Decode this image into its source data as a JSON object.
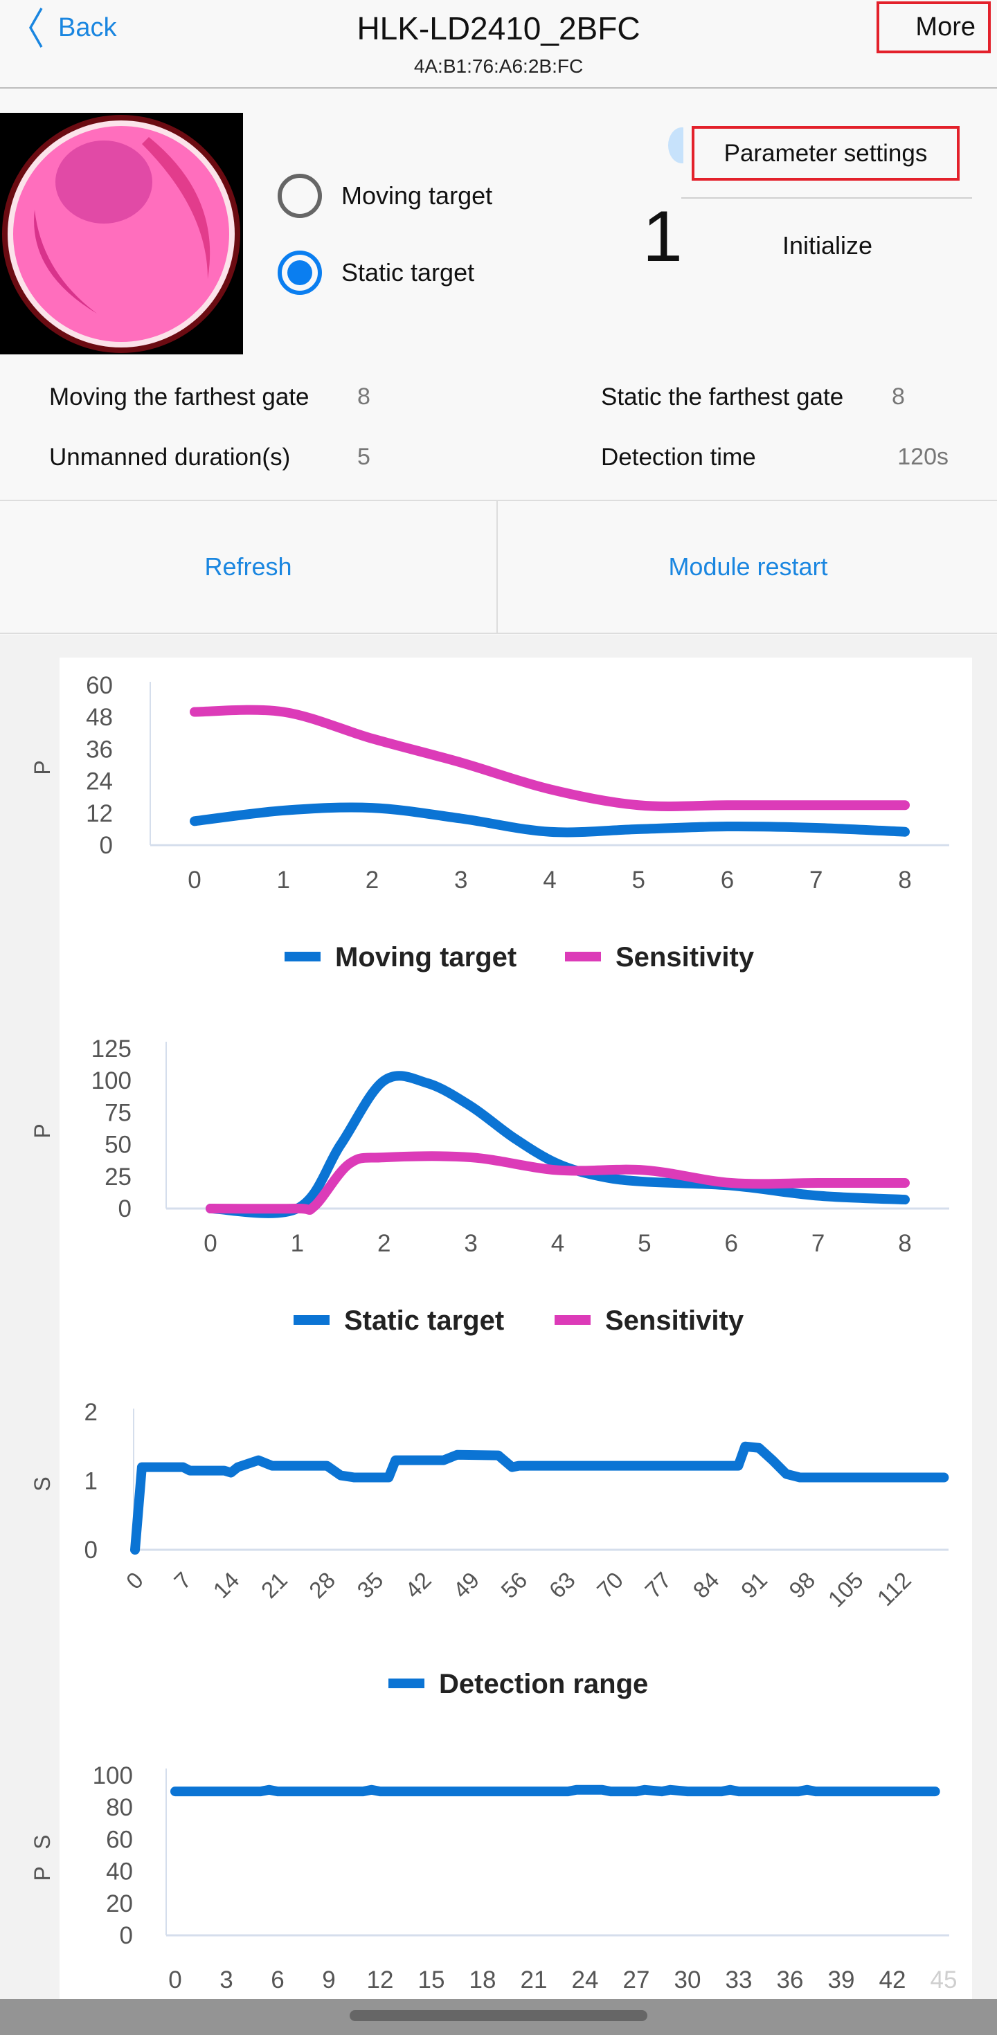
{
  "header": {
    "back_label": "Back",
    "title": "HLK-LD2410_2BFC",
    "mac": "4A:B1:76:A6:2B:FC",
    "more_label": "More"
  },
  "targets": {
    "moving_label": "Moving target",
    "static_label": "Static target",
    "selected": "static"
  },
  "param_settings_label": "Parameter settings",
  "count": "1",
  "initialize_label": "Initialize",
  "info": {
    "moving_farthest_label": "Moving the farthest gate",
    "moving_farthest_value": "8",
    "static_farthest_label": "Static the farthest gate",
    "static_farthest_value": "8",
    "unmanned_label": "Unmanned duration(s)",
    "unmanned_value": "5",
    "detection_time_label": "Detection time",
    "detection_time_value": "120s"
  },
  "actions": {
    "refresh_label": "Refresh",
    "restart_label": "Module restart"
  },
  "colors": {
    "blue": "#0b74d4",
    "pink": "#dc3bb8",
    "link": "#1a86e0"
  },
  "chart_data": [
    {
      "type": "line",
      "ylabel": "P",
      "ylim": [
        0,
        60
      ],
      "yticks": [
        0,
        12,
        24,
        36,
        48,
        60
      ],
      "xlim": [
        0,
        8
      ],
      "xticks": [
        0,
        1,
        2,
        3,
        4,
        5,
        6,
        7,
        8
      ],
      "smooth": true,
      "series": [
        {
          "name": "Moving target",
          "color": "#0b74d4",
          "x": [
            0,
            1,
            2,
            3,
            4,
            5,
            6,
            7,
            8
          ],
          "y": [
            9,
            13,
            14,
            10,
            5,
            6,
            7,
            6.5,
            5
          ]
        },
        {
          "name": "Sensitivity",
          "color": "#dc3bb8",
          "x": [
            0,
            1,
            2,
            3,
            4,
            5,
            6,
            7,
            8
          ],
          "y": [
            50,
            50,
            40,
            31,
            21,
            15,
            15,
            15,
            15
          ]
        }
      ]
    },
    {
      "type": "line",
      "ylabel": "P",
      "ylim": [
        0,
        125
      ],
      "yticks": [
        0,
        25,
        50,
        75,
        100,
        125
      ],
      "xlim": [
        0,
        8
      ],
      "xticks": [
        0,
        1,
        2,
        3,
        4,
        5,
        6,
        7,
        8
      ],
      "smooth": true,
      "series": [
        {
          "name": "Static target",
          "color": "#0b74d4",
          "x": [
            0,
            1,
            1.5,
            2,
            2.5,
            3,
            3.5,
            4,
            4.5,
            5,
            6,
            7,
            8
          ],
          "y": [
            0,
            0,
            50,
            100,
            98,
            80,
            55,
            35,
            25,
            21,
            18,
            10,
            7
          ]
        },
        {
          "name": "Sensitivity",
          "color": "#dc3bb8",
          "x": [
            0,
            1,
            1.2,
            1.6,
            2,
            3,
            4,
            5,
            6,
            7,
            8
          ],
          "y": [
            0,
            0,
            2,
            35,
            40,
            40,
            30,
            30,
            20,
            20,
            20
          ]
        }
      ]
    },
    {
      "type": "line",
      "ylabel": "S",
      "ylim": [
        0,
        2
      ],
      "yticks": [
        0,
        1,
        2
      ],
      "xlim": [
        0,
        119
      ],
      "xticks": [
        0,
        7,
        14,
        21,
        28,
        35,
        42,
        49,
        56,
        63,
        70,
        77,
        84,
        91,
        98,
        105,
        112
      ],
      "smooth": false,
      "rotate_xticks": true,
      "series": [
        {
          "name": "Detection range",
          "color": "#0b74d4",
          "x": [
            0,
            1,
            7,
            8,
            13,
            14,
            15,
            18,
            20,
            28,
            30,
            32,
            37,
            38,
            45,
            47,
            53,
            55,
            56,
            88,
            89,
            91,
            93,
            95,
            97,
            118
          ],
          "y": [
            0,
            1.2,
            1.2,
            1.15,
            1.15,
            1.12,
            1.2,
            1.3,
            1.22,
            1.22,
            1.08,
            1.05,
            1.05,
            1.3,
            1.3,
            1.38,
            1.37,
            1.2,
            1.22,
            1.22,
            1.5,
            1.48,
            1.3,
            1.1,
            1.05,
            1.05
          ]
        }
      ]
    },
    {
      "type": "line",
      "ylabel": "P S",
      "ylim": [
        0,
        100
      ],
      "yticks": [
        0,
        20,
        40,
        60,
        80,
        100
      ],
      "xlim": [
        0,
        45
      ],
      "xticks": [
        0,
        3,
        6,
        9,
        12,
        15,
        18,
        21,
        24,
        27,
        30,
        33,
        36,
        39,
        42,
        45
      ],
      "smooth": false,
      "legend": false,
      "series": [
        {
          "name": "",
          "color": "#0b74d4",
          "x": [
            0,
            5,
            5.5,
            6,
            11,
            11.5,
            12,
            23,
            23.5,
            25,
            25.5,
            27,
            27.5,
            28.5,
            29,
            30,
            32,
            32.5,
            33,
            36.5,
            37,
            37.5,
            44.5
          ],
          "y": [
            90,
            90,
            91,
            90,
            90,
            91,
            90,
            90,
            91,
            91,
            90,
            90,
            91,
            90,
            91,
            90,
            90,
            91,
            90,
            90,
            91,
            90,
            90
          ]
        }
      ]
    }
  ]
}
